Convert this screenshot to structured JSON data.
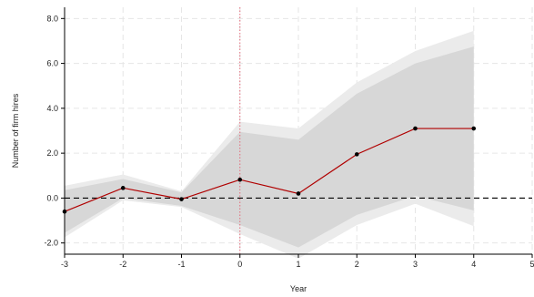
{
  "chart_data": {
    "type": "line",
    "xlabel": "Year",
    "ylabel": "Number of firm hires",
    "xlim": [
      -3,
      5
    ],
    "ylim": [
      -2.5,
      8.5
    ],
    "x_ticks": [
      -3,
      -2,
      -1,
      0,
      1,
      2,
      3,
      4,
      5
    ],
    "x_tick_labels": [
      "-3",
      "-2",
      "-1",
      "0",
      "1",
      "2",
      "3",
      "4",
      "5"
    ],
    "y_ticks": [
      -2,
      0,
      2,
      4,
      6,
      8
    ],
    "y_tick_labels": [
      "-2.0",
      "0.0",
      "2.0",
      "4.0",
      "6.0",
      "8.0"
    ],
    "grid": true,
    "reference_lines": {
      "vertical_x": 0,
      "horizontal_y": 0
    },
    "series": [
      {
        "x": [
          -3,
          -2,
          -1,
          0,
          1,
          2,
          3,
          4
        ],
        "values": [
          -0.6,
          0.45,
          -0.05,
          0.82,
          0.2,
          1.95,
          3.1,
          3.1
        ]
      }
    ],
    "bands": [
      {
        "kind": "outer",
        "x": [
          -3,
          -2,
          -1,
          0,
          1,
          2,
          3,
          4
        ],
        "lower": [
          -1.75,
          -0.1,
          -0.4,
          -1.6,
          -2.7,
          -1.2,
          -0.25,
          -1.25
        ],
        "upper": [
          0.55,
          1.05,
          0.3,
          3.4,
          3.1,
          5.15,
          6.55,
          7.45
        ]
      },
      {
        "kind": "inner",
        "x": [
          -3,
          -2,
          -1,
          0,
          1,
          2,
          3,
          4
        ],
        "lower": [
          -1.55,
          0.0,
          -0.35,
          -1.2,
          -2.2,
          -0.75,
          0.1,
          -0.55
        ],
        "upper": [
          0.35,
          0.85,
          0.25,
          2.95,
          2.6,
          4.65,
          6.0,
          6.75
        ]
      }
    ],
    "colors": {
      "line": "#b00000",
      "marker": "#000000",
      "outer_band": "#ebebeb",
      "inner_band": "#d7d7d7",
      "grid": "#e6e6e6",
      "zero_line": "#000000",
      "vline": "#e36b7a",
      "axis": "#000000"
    }
  }
}
